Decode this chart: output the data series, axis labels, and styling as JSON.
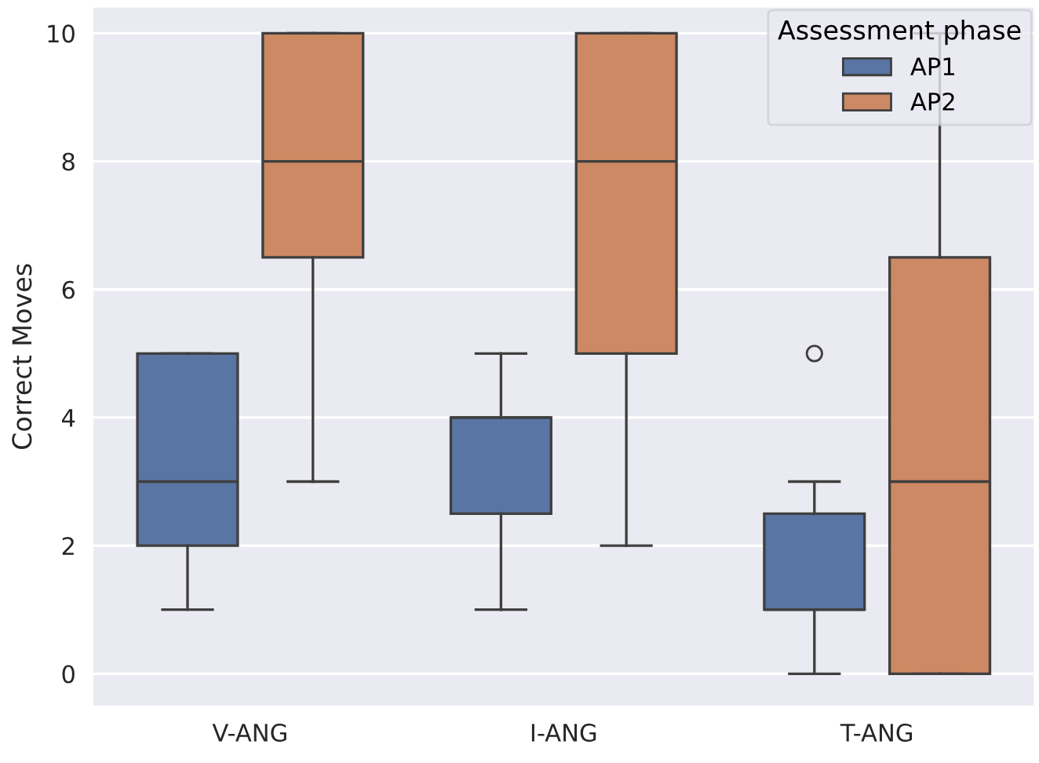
{
  "chart_data": {
    "type": "box",
    "ylabel": "Correct Moves",
    "legend_title": "Assessment phase",
    "categories": [
      "V-ANG",
      "I-ANG",
      "T-ANG"
    ],
    "series": [
      {
        "name": "AP1",
        "color": "#5875a4",
        "boxes": [
          {
            "low": 1,
            "q1": 2,
            "median": 3,
            "q3": 5,
            "high": 5
          },
          {
            "low": 1,
            "q1": 2.5,
            "median": 4,
            "q3": 4,
            "high": 5
          },
          {
            "low": 0,
            "q1": 1,
            "median": 1,
            "q3": 2.5,
            "high": 3,
            "outliers": [
              5
            ]
          }
        ]
      },
      {
        "name": "AP2",
        "color": "#cc8963",
        "boxes": [
          {
            "low": 3,
            "q1": 6.5,
            "median": 8,
            "q3": 10,
            "high": 10
          },
          {
            "low": 2,
            "q1": 5,
            "median": 8,
            "q3": 10,
            "high": 10
          },
          {
            "low": 0,
            "q1": 0,
            "median": 3,
            "q3": 6.5,
            "high": 10
          }
        ]
      }
    ],
    "ylim": [
      -0.5,
      10.4
    ],
    "yticks": [
      0,
      2,
      4,
      6,
      8,
      10
    ],
    "grid": "y",
    "legend": "top right"
  }
}
